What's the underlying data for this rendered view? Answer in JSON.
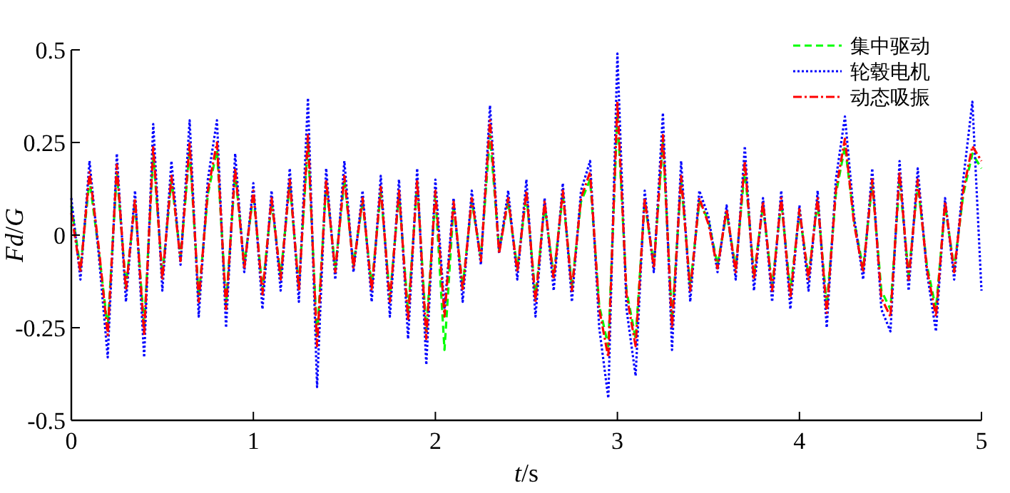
{
  "chart_data": {
    "type": "line",
    "xlabel": "*t*/s",
    "ylabel": "*Fd*/*G*",
    "xlim": [
      0,
      5
    ],
    "ylim": [
      -0.5,
      0.5
    ],
    "xticks": [
      0,
      1,
      2,
      3,
      4,
      5
    ],
    "yticks": [
      -0.5,
      -0.25,
      0,
      0.25,
      0.5
    ],
    "legend": "top right",
    "grid": false,
    "x": [
      0,
      0.05,
      0.1,
      0.15,
      0.2,
      0.25,
      0.3,
      0.35,
      0.4,
      0.45,
      0.5,
      0.55,
      0.6,
      0.65,
      0.7,
      0.75,
      0.8,
      0.85,
      0.9,
      0.95,
      1,
      1.05,
      1.1,
      1.15,
      1.2,
      1.25,
      1.3,
      1.35,
      1.4,
      1.45,
      1.5,
      1.55,
      1.6,
      1.65,
      1.7,
      1.75,
      1.8,
      1.85,
      1.9,
      1.95,
      2,
      2.05,
      2.1,
      2.15,
      2.2,
      2.25,
      2.3,
      2.35,
      2.4,
      2.45,
      2.5,
      2.55,
      2.6,
      2.65,
      2.7,
      2.75,
      2.8,
      2.85,
      2.9,
      2.95,
      3,
      3.05,
      3.1,
      3.15,
      3.2,
      3.25,
      3.3,
      3.35,
      3.4,
      3.45,
      3.5,
      3.55,
      3.6,
      3.65,
      3.7,
      3.75,
      3.8,
      3.85,
      3.9,
      3.95,
      4,
      4.05,
      4.1,
      4.15,
      4.2,
      4.25,
      4.3,
      4.35,
      4.4,
      4.45,
      4.5,
      4.55,
      4.6,
      4.65,
      4.7,
      4.75,
      4.8,
      4.85,
      4.9,
      4.95,
      5
    ],
    "series": [
      {
        "name": "集中驱动",
        "color": "#00ff00",
        "line_style": "dashed",
        "values": [
          0.08,
          -0.09,
          0.15,
          -0.04,
          -0.25,
          0.17,
          -0.14,
          0.09,
          -0.25,
          0.22,
          -0.11,
          0.15,
          -0.06,
          0.23,
          -0.17,
          0.11,
          0.23,
          -0.19,
          0.17,
          -0.08,
          0.11,
          -0.15,
          0.09,
          -0.11,
          0.14,
          -0.14,
          0.25,
          -0.28,
          0.14,
          -0.09,
          0.15,
          -0.08,
          0.09,
          -0.14,
          0.12,
          -0.17,
          0.11,
          -0.21,
          0.14,
          -0.26,
          0.11,
          -0.31,
          0.08,
          -0.14,
          0.09,
          -0.06,
          0.27,
          -0.04,
          0.09,
          -0.09,
          0.11,
          -0.17,
          0.08,
          -0.11,
          0.11,
          -0.14,
          0.09,
          0.15,
          -0.19,
          -0.3,
          0.33,
          -0.15,
          -0.28,
          0.09,
          -0.08,
          0.25,
          -0.23,
          0.15,
          -0.14,
          0.09,
          0.04,
          -0.08,
          0.06,
          -0.09,
          0.18,
          -0.11,
          0.08,
          -0.14,
          0.09,
          -0.15,
          0.06,
          -0.11,
          0.09,
          -0.19,
          0.11,
          0.24,
          0.04,
          -0.09,
          0.14,
          -0.15,
          -0.2,
          0.15,
          -0.11,
          0.14,
          -0.08,
          -0.2,
          0.08,
          -0.09,
          0.11,
          0.22,
          0.18
        ]
      },
      {
        "name": "轮毂电机",
        "color": "#0000ff",
        "line_style": "dotted",
        "values": [
          0.1,
          -0.12,
          0.2,
          -0.05,
          -0.33,
          0.22,
          -0.18,
          0.12,
          -0.33,
          0.3,
          -0.15,
          0.2,
          -0.08,
          0.31,
          -0.22,
          0.15,
          0.31,
          -0.25,
          0.22,
          -0.1,
          0.14,
          -0.2,
          0.12,
          -0.15,
          0.18,
          -0.18,
          0.37,
          -0.41,
          0.18,
          -0.12,
          0.2,
          -0.1,
          0.12,
          -0.18,
          0.16,
          -0.22,
          0.15,
          -0.28,
          0.18,
          -0.35,
          0.15,
          -0.2,
          0.1,
          -0.18,
          0.12,
          -0.08,
          0.35,
          -0.05,
          0.12,
          -0.12,
          0.15,
          -0.22,
          0.1,
          -0.15,
          0.14,
          -0.18,
          0.12,
          0.2,
          -0.25,
          -0.44,
          0.49,
          -0.2,
          -0.38,
          0.12,
          -0.1,
          0.33,
          -0.31,
          0.2,
          -0.18,
          0.12,
          0.05,
          -0.1,
          0.08,
          -0.12,
          0.24,
          -0.15,
          0.1,
          -0.18,
          0.12,
          -0.2,
          0.08,
          -0.15,
          0.12,
          -0.25,
          0.15,
          0.32,
          0.05,
          -0.12,
          0.18,
          -0.2,
          -0.26,
          0.2,
          -0.15,
          0.18,
          -0.1,
          -0.26,
          0.1,
          -0.12,
          0.15,
          0.36,
          -0.15
        ]
      },
      {
        "name": "动态吸振",
        "color": "#ff0000",
        "line_style": "dashdot",
        "values": [
          0.06,
          -0.1,
          0.17,
          -0.03,
          -0.27,
          0.19,
          -0.15,
          0.1,
          -0.27,
          0.24,
          -0.12,
          0.16,
          -0.07,
          0.25,
          -0.18,
          0.12,
          0.25,
          -0.2,
          0.18,
          -0.09,
          0.12,
          -0.16,
          0.1,
          -0.12,
          0.15,
          -0.15,
          0.27,
          -0.3,
          0.15,
          -0.1,
          0.16,
          -0.09,
          0.1,
          -0.15,
          0.13,
          -0.18,
          0.12,
          -0.23,
          0.15,
          -0.28,
          0.12,
          -0.22,
          0.09,
          -0.15,
          0.1,
          -0.07,
          0.31,
          -0.05,
          0.1,
          -0.1,
          0.12,
          -0.18,
          0.09,
          -0.12,
          0.12,
          -0.15,
          0.1,
          0.17,
          -0.2,
          -0.33,
          0.36,
          -0.16,
          -0.3,
          0.1,
          -0.09,
          0.27,
          -0.25,
          0.16,
          -0.15,
          0.1,
          0.03,
          -0.09,
          0.07,
          -0.1,
          0.2,
          -0.12,
          0.09,
          -0.15,
          0.1,
          -0.17,
          0.07,
          -0.12,
          0.1,
          -0.21,
          0.12,
          0.26,
          0.03,
          -0.1,
          0.15,
          -0.17,
          -0.22,
          0.17,
          -0.12,
          0.15,
          -0.09,
          -0.22,
          0.09,
          -0.1,
          0.12,
          0.24,
          0.2
        ]
      }
    ]
  }
}
